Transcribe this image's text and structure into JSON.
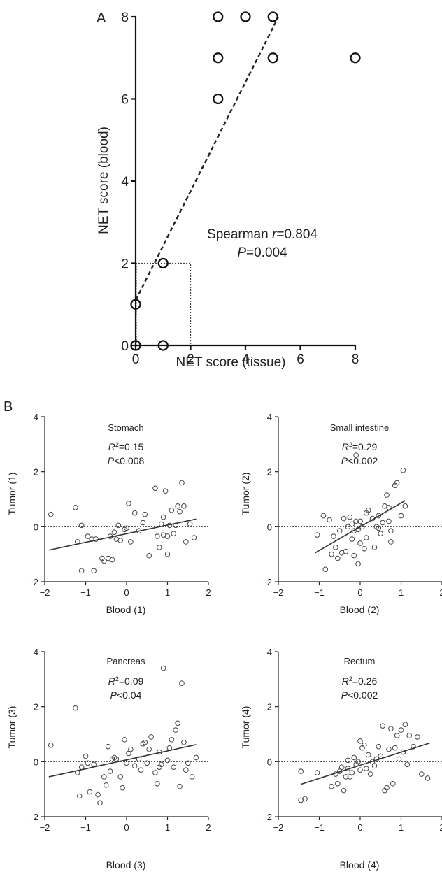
{
  "panel_labels": [
    "A",
    "B"
  ],
  "chart_data": [
    {
      "type": "scatter",
      "id": "A",
      "xlabel": "NET score (tissue)",
      "ylabel": "NET score (blood)",
      "xlim": [
        0,
        8
      ],
      "ylim": [
        0,
        8
      ],
      "xticks": [
        0,
        2,
        4,
        6,
        8
      ],
      "yticks": [
        0,
        2,
        4,
        6,
        8
      ],
      "annotation": {
        "line1_prefix": "Spearman ",
        "line1_var": "r",
        "line1_value": "=0.804",
        "line2_var": "P",
        "line2_value": "=0.004"
      },
      "points": [
        {
          "x": 0,
          "y": 0
        },
        {
          "x": 1,
          "y": 0
        },
        {
          "x": 0,
          "y": 1
        },
        {
          "x": 1,
          "y": 2
        },
        {
          "x": 3,
          "y": 6
        },
        {
          "x": 3,
          "y": 7
        },
        {
          "x": 5,
          "y": 7
        },
        {
          "x": 8,
          "y": 7
        },
        {
          "x": 3,
          "y": 8
        },
        {
          "x": 4,
          "y": 8
        },
        {
          "x": 5,
          "y": 8
        }
      ],
      "fit_line": {
        "x": [
          0,
          5.2
        ],
        "y": [
          1.1,
          8.0
        ],
        "style": "dashed"
      },
      "reference_box": {
        "x": [
          0,
          2
        ],
        "y": [
          0,
          2
        ],
        "style": "dotted"
      }
    },
    {
      "type": "scatter",
      "id": "B1",
      "title": "Stomach",
      "xlabel": "Blood (1)",
      "ylabel": "Tumor (1)",
      "xlim": [
        -2,
        2
      ],
      "ylim": [
        -2,
        4
      ],
      "xticks": [
        -2,
        -1,
        0,
        1,
        2
      ],
      "yticks": [
        -2,
        0,
        2,
        4
      ],
      "stats": {
        "r2_value": "=0.15",
        "p_value": "<0.008"
      },
      "fit_line": {
        "x": [
          -1.9,
          1.7
        ],
        "y": [
          -0.85,
          0.28
        ]
      },
      "points": [
        [
          -1.85,
          0.45
        ],
        [
          -1.25,
          0.7
        ],
        [
          -1.2,
          -0.55
        ],
        [
          -1.1,
          0.05
        ],
        [
          -1.1,
          -1.6
        ],
        [
          -0.95,
          -0.35
        ],
        [
          -0.85,
          -0.45
        ],
        [
          -0.8,
          -1.6
        ],
        [
          -0.75,
          -0.45
        ],
        [
          -0.6,
          -1.15
        ],
        [
          -0.55,
          -1.25
        ],
        [
          -0.45,
          -1.15
        ],
        [
          -0.4,
          -0.35
        ],
        [
          -0.35,
          -1.2
        ],
        [
          -0.3,
          -0.2
        ],
        [
          -0.25,
          -0.45
        ],
        [
          -0.2,
          0.05
        ],
        [
          -0.15,
          -0.5
        ],
        [
          -0.05,
          -0.1
        ],
        [
          0.0,
          -0.05
        ],
        [
          0.05,
          0.85
        ],
        [
          0.1,
          -0.55
        ],
        [
          0.2,
          0.5
        ],
        [
          0.3,
          -0.15
        ],
        [
          0.4,
          0.15
        ],
        [
          0.45,
          0.45
        ],
        [
          0.55,
          -1.05
        ],
        [
          0.7,
          1.4
        ],
        [
          0.75,
          -0.35
        ],
        [
          0.8,
          -0.75
        ],
        [
          0.85,
          0.1
        ],
        [
          0.9,
          -0.3
        ],
        [
          0.9,
          0.35
        ],
        [
          0.95,
          1.3
        ],
        [
          1.0,
          -0.35
        ],
        [
          1.0,
          -1.0
        ],
        [
          1.05,
          0.05
        ],
        [
          1.1,
          0.6
        ],
        [
          1.15,
          -0.25
        ],
        [
          1.2,
          0.05
        ],
        [
          1.25,
          0.75
        ],
        [
          1.3,
          0.55
        ],
        [
          1.35,
          1.6
        ],
        [
          1.4,
          0.75
        ],
        [
          1.45,
          -0.55
        ],
        [
          1.55,
          0.1
        ],
        [
          1.65,
          -0.4
        ]
      ]
    },
    {
      "type": "scatter",
      "id": "B2",
      "title": "Small intestine",
      "xlabel": "Blood (2)",
      "ylabel": "Tumor (2)",
      "xlim": [
        -2,
        2
      ],
      "ylim": [
        -2,
        4
      ],
      "xticks": [
        -2,
        -1,
        0,
        1,
        2
      ],
      "yticks": [
        -2,
        0,
        2,
        4
      ],
      "stats": {
        "r2_value": "=0.29",
        "p_value": "<0.002"
      },
      "fit_line": {
        "x": [
          -1.1,
          1.1
        ],
        "y": [
          -0.95,
          0.95
        ]
      },
      "points": [
        [
          -1.05,
          -0.3
        ],
        [
          -0.9,
          0.4
        ],
        [
          -0.85,
          -1.55
        ],
        [
          -0.75,
          0.25
        ],
        [
          -0.7,
          -1.0
        ],
        [
          -0.65,
          -0.35
        ],
        [
          -0.6,
          -0.75
        ],
        [
          -0.55,
          -1.15
        ],
        [
          -0.5,
          -0.15
        ],
        [
          -0.45,
          -0.95
        ],
        [
          -0.4,
          0.3
        ],
        [
          -0.35,
          -0.9
        ],
        [
          -0.3,
          0.0
        ],
        [
          -0.25,
          0.35
        ],
        [
          -0.2,
          -0.45
        ],
        [
          -0.2,
          0.1
        ],
        [
          -0.15,
          -0.15
        ],
        [
          -0.15,
          -1.05
        ],
        [
          -0.1,
          0.2
        ],
        [
          -0.1,
          2.6
        ],
        [
          -0.05,
          -0.1
        ],
        [
          -0.05,
          -1.35
        ],
        [
          0.0,
          0.2
        ],
        [
          0.0,
          -0.6
        ],
        [
          0.05,
          0.0
        ],
        [
          0.1,
          -0.8
        ],
        [
          0.15,
          0.5
        ],
        [
          0.15,
          -0.4
        ],
        [
          0.2,
          0.6
        ],
        [
          0.3,
          0.3
        ],
        [
          0.35,
          -0.75
        ],
        [
          0.4,
          0.0
        ],
        [
          0.45,
          -0.05
        ],
        [
          0.45,
          0.4
        ],
        [
          0.5,
          -0.25
        ],
        [
          0.55,
          0.15
        ],
        [
          0.6,
          0.75
        ],
        [
          0.65,
          1.15
        ],
        [
          0.7,
          0.7
        ],
        [
          0.7,
          0.2
        ],
        [
          0.75,
          -0.55
        ],
        [
          0.75,
          -0.15
        ],
        [
          0.85,
          1.5
        ],
        [
          0.9,
          1.6
        ],
        [
          1.0,
          0.4
        ],
        [
          1.05,
          2.05
        ],
        [
          1.1,
          0.75
        ]
      ]
    },
    {
      "type": "scatter",
      "id": "B3",
      "title": "Pancreas",
      "xlabel": "Blood (3)",
      "ylabel": "Tumor (3)",
      "xlim": [
        -2,
        2
      ],
      "ylim": [
        -2,
        4
      ],
      "xticks": [
        -2,
        -1,
        0,
        1,
        2
      ],
      "yticks": [
        -2,
        0,
        2,
        4
      ],
      "stats": {
        "r2_value": "=0.09",
        "p_value": "<0.04"
      },
      "fit_line": {
        "x": [
          -1.9,
          1.7
        ],
        "y": [
          -0.55,
          0.62
        ]
      },
      "points": [
        [
          -1.85,
          0.6
        ],
        [
          -1.25,
          1.95
        ],
        [
          -1.2,
          -0.4
        ],
        [
          -1.15,
          -1.25
        ],
        [
          -1.1,
          -0.2
        ],
        [
          -1.0,
          0.2
        ],
        [
          -0.95,
          -0.05
        ],
        [
          -0.9,
          -1.1
        ],
        [
          -0.8,
          -0.1
        ],
        [
          -0.7,
          -1.2
        ],
        [
          -0.65,
          -1.5
        ],
        [
          -0.55,
          -0.55
        ],
        [
          -0.5,
          -0.85
        ],
        [
          -0.45,
          0.55
        ],
        [
          -0.4,
          -0.35
        ],
        [
          -0.35,
          0.1
        ],
        [
          -0.3,
          0.15
        ],
        [
          -0.25,
          0.1
        ],
        [
          -0.15,
          -0.55
        ],
        [
          -0.1,
          -0.95
        ],
        [
          -0.05,
          0.8
        ],
        [
          0.0,
          -0.05
        ],
        [
          0.05,
          0.3
        ],
        [
          0.1,
          0.45
        ],
        [
          0.2,
          -0.15
        ],
        [
          0.3,
          0.1
        ],
        [
          0.35,
          -0.3
        ],
        [
          0.4,
          0.65
        ],
        [
          0.45,
          0.7
        ],
        [
          0.5,
          -0.05
        ],
        [
          0.55,
          0.45
        ],
        [
          0.6,
          0.9
        ],
        [
          0.7,
          -0.4
        ],
        [
          0.75,
          -0.8
        ],
        [
          0.8,
          -0.2
        ],
        [
          0.8,
          0.35
        ],
        [
          0.85,
          -0.1
        ],
        [
          0.9,
          3.4
        ],
        [
          1.0,
          0.05
        ],
        [
          1.05,
          0.5
        ],
        [
          1.1,
          0.8
        ],
        [
          1.15,
          -0.2
        ],
        [
          1.2,
          1.15
        ],
        [
          1.25,
          1.4
        ],
        [
          1.3,
          -0.9
        ],
        [
          1.35,
          2.85
        ],
        [
          1.4,
          0.7
        ],
        [
          1.45,
          -0.3
        ],
        [
          1.5,
          -0.05
        ],
        [
          1.6,
          -0.55
        ],
        [
          1.7,
          0.15
        ]
      ]
    },
    {
      "type": "scatter",
      "id": "B4",
      "title": "Rectum",
      "xlabel": "Blood (4)",
      "ylabel": "Tumor (4)",
      "xlim": [
        -2,
        2
      ],
      "ylim": [
        -2,
        4
      ],
      "xticks": [
        -2,
        -1,
        0,
        1,
        2
      ],
      "yticks": [
        -2,
        0,
        2,
        4
      ],
      "stats": {
        "r2_value": "=0.26",
        "p_value": "<0.002"
      },
      "fit_line": {
        "x": [
          -1.45,
          1.7
        ],
        "y": [
          -0.82,
          0.68
        ]
      },
      "points": [
        [
          -1.45,
          -0.35
        ],
        [
          -1.45,
          -1.4
        ],
        [
          -1.35,
          -1.35
        ],
        [
          -1.05,
          -0.4
        ],
        [
          -0.7,
          -0.9
        ],
        [
          -0.6,
          -0.45
        ],
        [
          -0.55,
          -0.8
        ],
        [
          -0.5,
          -0.35
        ],
        [
          -0.45,
          -0.2
        ],
        [
          -0.4,
          -1.05
        ],
        [
          -0.35,
          -0.55
        ],
        [
          -0.3,
          0.05
        ],
        [
          -0.3,
          -0.25
        ],
        [
          -0.25,
          -0.55
        ],
        [
          -0.2,
          -0.4
        ],
        [
          -0.15,
          0.15
        ],
        [
          -0.1,
          -0.1
        ],
        [
          -0.05,
          0.0
        ],
        [
          0.0,
          -0.3
        ],
        [
          0.0,
          0.75
        ],
        [
          0.05,
          0.5
        ],
        [
          0.1,
          0.6
        ],
        [
          0.15,
          -0.25
        ],
        [
          0.2,
          0.25
        ],
        [
          0.25,
          -0.45
        ],
        [
          0.3,
          0.0
        ],
        [
          0.35,
          -0.15
        ],
        [
          0.4,
          0.1
        ],
        [
          0.45,
          0.55
        ],
        [
          0.5,
          0.2
        ],
        [
          0.55,
          1.3
        ],
        [
          0.6,
          -1.05
        ],
        [
          0.65,
          -0.95
        ],
        [
          0.7,
          0.45
        ],
        [
          0.75,
          1.2
        ],
        [
          0.8,
          -0.8
        ],
        [
          0.85,
          0.5
        ],
        [
          0.9,
          0.95
        ],
        [
          0.95,
          0.1
        ],
        [
          1.0,
          1.15
        ],
        [
          1.05,
          0.35
        ],
        [
          1.1,
          1.35
        ],
        [
          1.15,
          -0.1
        ],
        [
          1.2,
          0.95
        ],
        [
          1.3,
          0.55
        ],
        [
          1.4,
          0.9
        ],
        [
          1.5,
          -0.45
        ],
        [
          1.65,
          -0.6
        ]
      ]
    }
  ]
}
